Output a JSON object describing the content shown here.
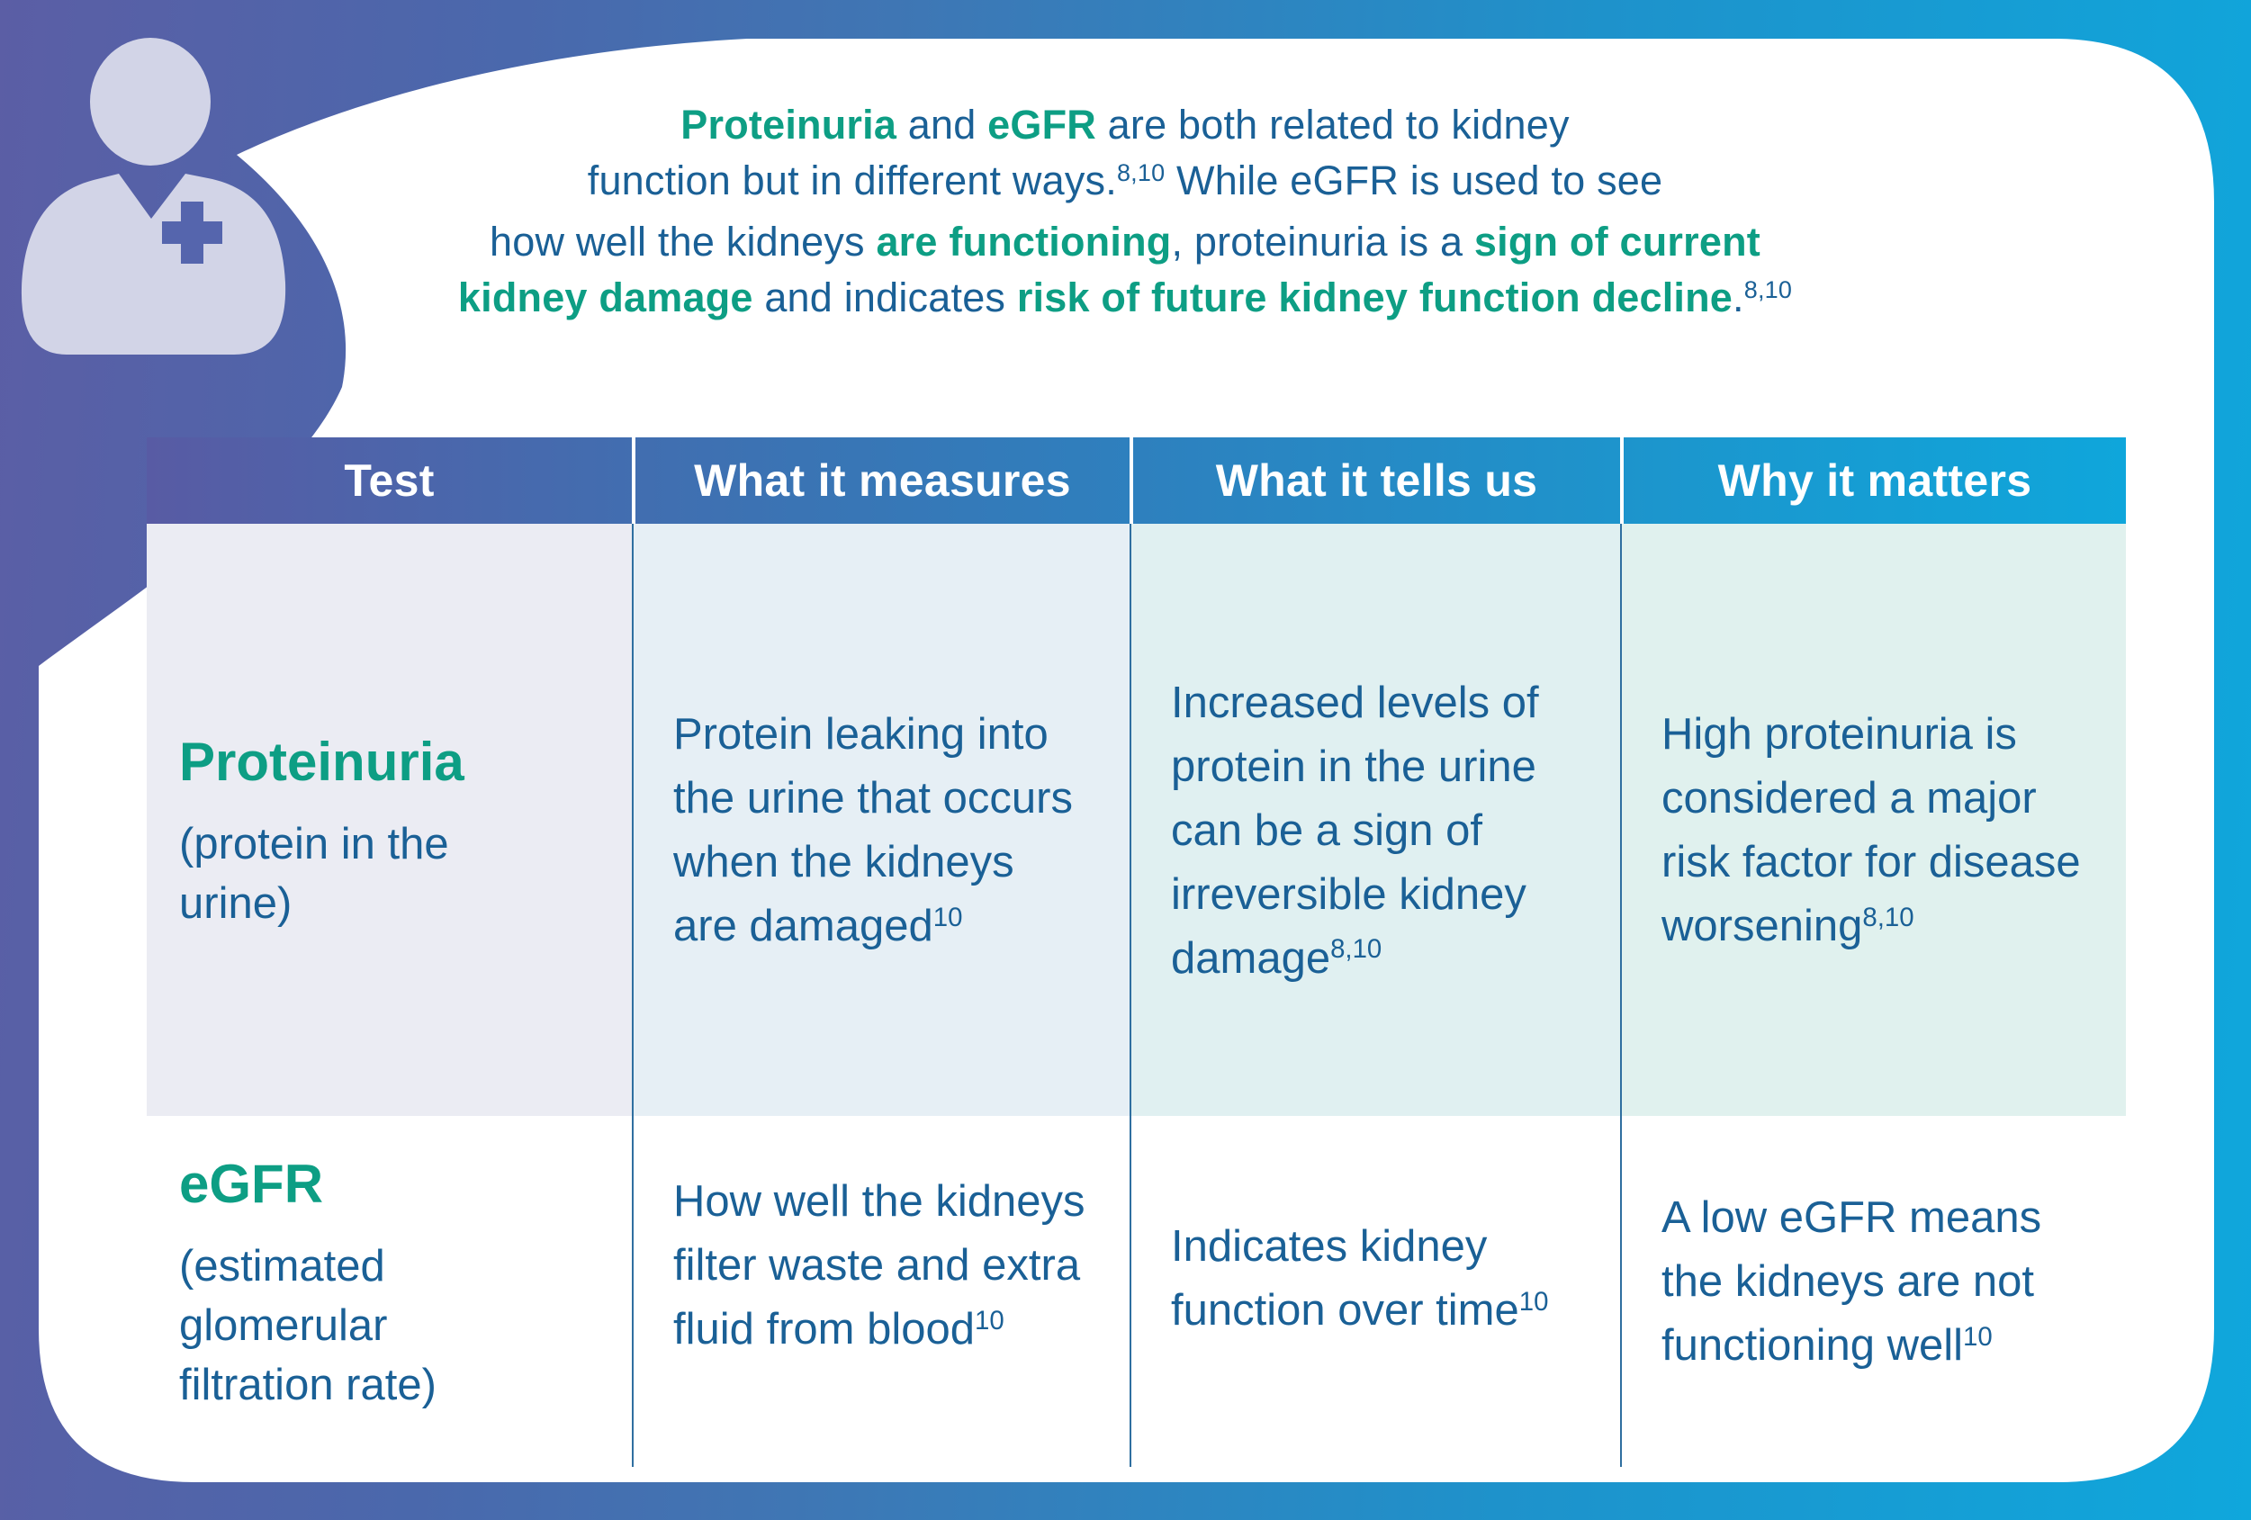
{
  "palette": {
    "gradient_left": "#5B5EA5",
    "gradient_mid": "#3F76B4",
    "gradient_right": "#0FA7DC",
    "bubble": "#FFFFFF",
    "accent_teal": "#0D9E84",
    "text_blue": "#1A6096",
    "divider_blue": "#2F6FA0",
    "header_gradient": [
      "#585BA4",
      "#2E80BE",
      "#0FA6DB"
    ],
    "row1_backgrounds": [
      "#EBECF3",
      "#E6EFF5",
      "#E0F0F1",
      "#E0F1EE"
    ],
    "avatar_fill": "#D2D4E7",
    "avatar_cross": "#5565AD"
  },
  "avatar": {
    "icon": "clinician-person-icon",
    "badge_icon": "medical-cross-icon"
  },
  "intro": {
    "lines": [
      [
        {
          "t": "Proteinuria",
          "em": 1
        },
        {
          "t": " and "
        },
        {
          "t": "eGFR",
          "em": 1
        },
        {
          "t": " are both related to kidney"
        }
      ],
      [
        {
          "t": "function but in different ways."
        },
        {
          "sup": "8,10"
        },
        {
          "t": " While eGFR is used to see"
        }
      ],
      [
        {
          "t": "how well the kidneys "
        },
        {
          "t": "are functioning",
          "em": 1
        },
        {
          "t": ", proteinuria is a "
        },
        {
          "t": "sign of current",
          "em": 1
        }
      ],
      [
        {
          "t": "kidney damage",
          "em": 1
        },
        {
          "t": " and indicates "
        },
        {
          "t": "risk of future kidney function decline",
          "em": 1
        },
        {
          "t": "."
        },
        {
          "sup": "8,10"
        }
      ]
    ]
  },
  "table": {
    "headers": [
      "Test",
      "What it measures",
      "What it tells us",
      "Why it matters"
    ],
    "rows": [
      {
        "test_name": "Proteinuria",
        "test_sub": "(protein in the urine)",
        "measures": {
          "text": "Protein leaking into the urine that occurs when the kidneys are damaged",
          "sup": "10"
        },
        "tells": {
          "text": "Increased levels of protein in the urine can be a sign of irreversible kidney damage",
          "sup": "8,10"
        },
        "matters": {
          "text": "High proteinuria is considered a major risk factor for disease worsening",
          "sup": "8,10"
        }
      },
      {
        "test_name": "eGFR",
        "test_sub": "(estimated glomerular filtration rate)",
        "measures": {
          "text": "How well the kidneys filter waste and extra fluid from blood",
          "sup": "10"
        },
        "tells": {
          "text": "Indicates kidney function over time",
          "sup": "10"
        },
        "matters": {
          "text": "A low eGFR means the kidneys are not functioning well",
          "sup": "10"
        }
      }
    ]
  }
}
